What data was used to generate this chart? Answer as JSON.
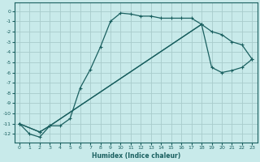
{
  "xlabel": "Humidex (Indice chaleur)",
  "bg_color": "#c8eaea",
  "grid_color": "#a8cccc",
  "line_color": "#1a6060",
  "xlim": [
    -0.5,
    23.5
  ],
  "ylim": [
    -12.8,
    0.8
  ],
  "xticks": [
    0,
    1,
    2,
    3,
    4,
    5,
    6,
    7,
    8,
    9,
    10,
    11,
    12,
    13,
    14,
    15,
    16,
    17,
    18,
    19,
    20,
    21,
    22,
    23
  ],
  "yticks": [
    0,
    -1,
    -2,
    -3,
    -4,
    -5,
    -6,
    -7,
    -8,
    -9,
    -10,
    -11,
    -12
  ],
  "line1_x": [
    0,
    1,
    2,
    3,
    4,
    5,
    6,
    7,
    8,
    9,
    10,
    11,
    12,
    13,
    14,
    15,
    16,
    17,
    18
  ],
  "line1_y": [
    -11.0,
    -12.0,
    -12.3,
    -11.2,
    -11.2,
    -10.5,
    -7.5,
    -5.7,
    -3.5,
    -1.0,
    -0.2,
    -0.3,
    -0.5,
    -0.5,
    -0.7,
    -0.7,
    -0.7,
    -0.7,
    -1.3
  ],
  "line2_x": [
    0,
    2,
    3,
    18,
    19,
    20,
    21,
    22,
    23
  ],
  "line2_y": [
    -11.0,
    -11.8,
    -11.2,
    -1.3,
    -2.0,
    -2.3,
    -3.0,
    -3.3,
    -4.7
  ],
  "line3_x": [
    0,
    2,
    3,
    18,
    19,
    20,
    21,
    22,
    23
  ],
  "line3_y": [
    -11.0,
    -11.8,
    -11.2,
    -1.3,
    -5.5,
    -6.0,
    -5.8,
    -5.5,
    -4.7
  ]
}
